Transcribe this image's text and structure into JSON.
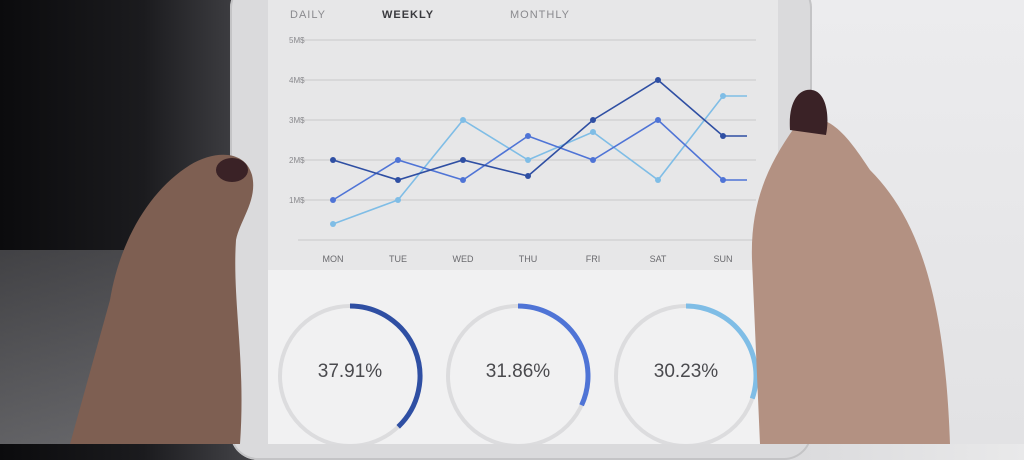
{
  "tabs": {
    "daily": "DAILY",
    "weekly": "WEEKLY",
    "monthly": "MONTHLY"
  },
  "colors": {
    "series_light": "#7fbde6",
    "series_mid": "#4f74d6",
    "series_dark": "#2f4fa3",
    "grid": "#c8c8ca",
    "donut_track": "#dcdcde"
  },
  "chart_data": [
    {
      "type": "line",
      "y_tick_labels": [
        "1M$",
        "2M$",
        "3M$",
        "4M$",
        "5M$"
      ],
      "ylim": [
        0,
        5
      ],
      "categories": [
        "MON",
        "TUE",
        "WED",
        "THU",
        "FRI",
        "SAT",
        "SUN"
      ],
      "grid": true,
      "series": [
        {
          "values": [
            0.4,
            1.0,
            3.0,
            2.0,
            2.7,
            1.5,
            3.6
          ]
        },
        {
          "values": [
            1.0,
            2.0,
            1.5,
            2.6,
            2.0,
            3.0,
            1.5
          ]
        },
        {
          "values": [
            2.0,
            1.5,
            2.0,
            1.6,
            3.0,
            4.0,
            2.6
          ]
        }
      ]
    },
    {
      "type": "pie",
      "values_percent": [
        37.91,
        31.86,
        30.23
      ],
      "labels": [
        "37.91%",
        "31.86%",
        "30.23%"
      ]
    }
  ]
}
